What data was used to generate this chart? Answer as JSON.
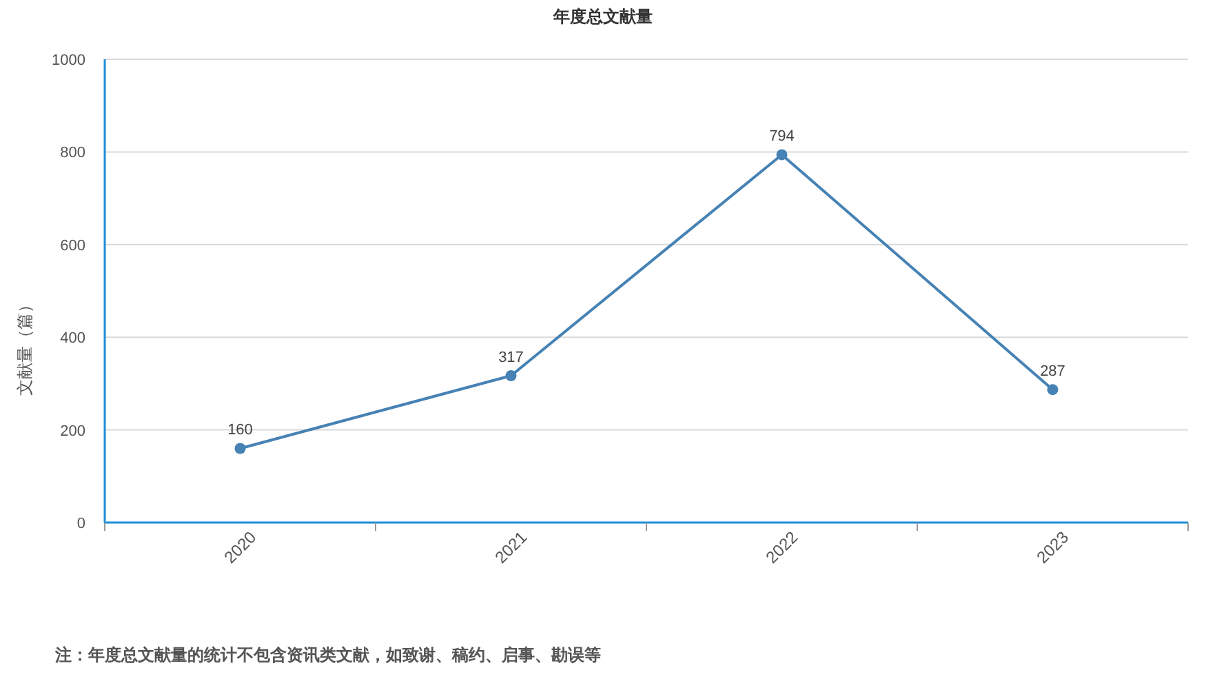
{
  "chart_data": {
    "type": "line",
    "title": "年度总文献量",
    "ylabel": "文献量（篇）",
    "categories": [
      "2020",
      "2021",
      "2022",
      "2023"
    ],
    "series": [
      {
        "color": "#4682b4",
        "values": [
          160,
          317,
          794,
          287
        ]
      }
    ],
    "ylim": [
      0,
      1000
    ],
    "yticks": [
      0,
      200,
      400,
      600,
      800,
      1000
    ],
    "grid": "y",
    "data_labels": true,
    "marker": "circle",
    "line_style": "solid",
    "annotations": [
      "注：年度总文献量的统计不包含资讯类文献，如致谢、稿约、启事、勘误等"
    ]
  }
}
